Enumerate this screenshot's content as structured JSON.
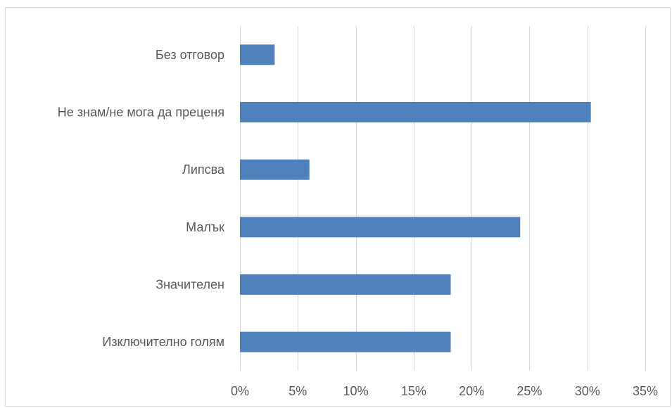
{
  "chart_data": {
    "type": "bar",
    "orientation": "horizontal",
    "categories": [
      "Без отговор",
      "Не знам/не мога да преценя",
      "Липсва",
      "Малък",
      "Значителен",
      "Изключително голям"
    ],
    "values": [
      3,
      30.3,
      6,
      24.2,
      18.2,
      18.2
    ],
    "title": "",
    "xlabel": "",
    "ylabel": "",
    "xlim": [
      0,
      35
    ],
    "x_ticks": [
      0,
      5,
      10,
      15,
      20,
      25,
      30,
      35
    ],
    "x_tick_labels": [
      "0%",
      "5%",
      "10%",
      "15%",
      "20%",
      "25%",
      "30%",
      "35%"
    ],
    "grid": "vertical",
    "legend": "none",
    "colors": {
      "bar": "#4f81bd",
      "gridline": "#d9d9d9",
      "label_text": "#595959",
      "frame": "#d9d9d9"
    }
  }
}
